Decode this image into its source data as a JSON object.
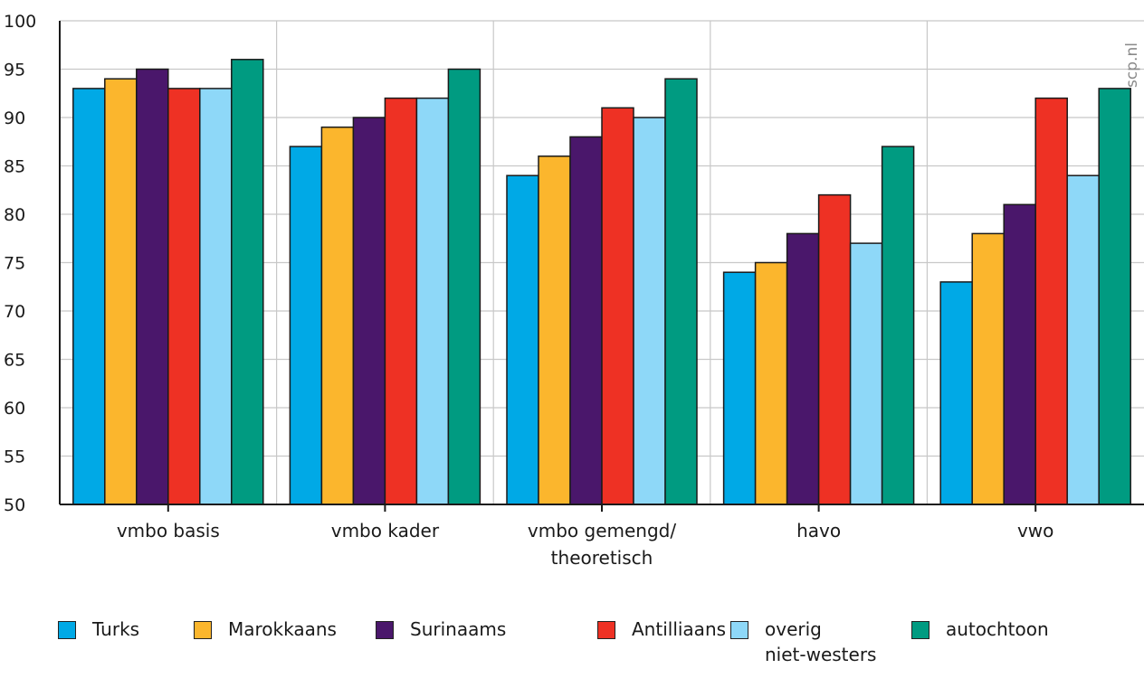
{
  "credit": "scp.nl",
  "chart_data": {
    "type": "bar",
    "categories": [
      "vmbo basis",
      "vmbo kader",
      "vmbo gemengd/\ntheoretisch",
      "havo",
      "vwo"
    ],
    "series": [
      {
        "name": "Turks",
        "color": "#00a9e6",
        "values": [
          93,
          87,
          84,
          74,
          73
        ]
      },
      {
        "name": "Marokkaans",
        "color": "#fbb62d",
        "values": [
          94,
          89,
          86,
          75,
          78
        ]
      },
      {
        "name": "Surinaams",
        "color": "#4a176b",
        "values": [
          95,
          90,
          88,
          78,
          81
        ]
      },
      {
        "name": "Antilliaans",
        "color": "#ee3124",
        "values": [
          93,
          92,
          91,
          82,
          92
        ]
      },
      {
        "name": "overig\nniet-westers",
        "color": "#8ed8f8",
        "values": [
          93,
          92,
          90,
          77,
          84
        ]
      },
      {
        "name": "autochtoon",
        "color": "#009b81",
        "values": [
          96,
          95,
          94,
          87,
          93
        ]
      }
    ],
    "ylim": [
      50,
      100
    ],
    "yticks": [
      50,
      55,
      60,
      65,
      70,
      75,
      80,
      85,
      90,
      95,
      100
    ],
    "grid": true,
    "legend": "bottom"
  }
}
